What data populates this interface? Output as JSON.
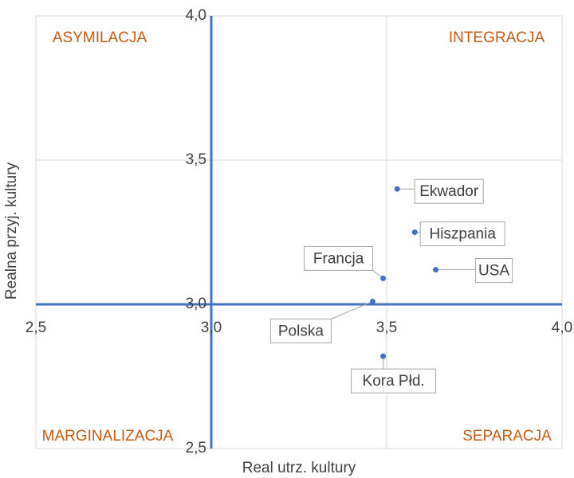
{
  "chart_data": {
    "type": "scatter",
    "xlabel": "Real utrz. kultury",
    "ylabel": "Realna przyj. kultury",
    "quadrant_labels": [
      "ASYMILACJA",
      "INTEGRACJA",
      "MARGINALIZACJA",
      "SEPARACJA"
    ],
    "labels": [
      "Ekwador",
      "Hiszpania",
      "USA",
      "Francja",
      "Polska",
      "Kora Płd."
    ],
    "x": [
      3.53,
      3.58,
      3.64,
      3.49,
      3.46,
      3.49
    ],
    "values": [
      3.4,
      3.25,
      3.12,
      3.09,
      3.01,
      2.82
    ],
    "color": "#4472c4",
    "xlim": [
      2.5,
      4.0
    ],
    "ylim": [
      2.5,
      4.0
    ],
    "xticks": [
      {
        "value": 2.5,
        "label": "2,5"
      },
      {
        "value": 3.0,
        "label": "3,0"
      },
      {
        "value": 3.5,
        "label": "3,5"
      },
      {
        "value": 4.0,
        "label": "4,0"
      }
    ],
    "yticks": [
      {
        "value": 2.5,
        "label": "2,5"
      },
      {
        "value": 3.0,
        "label": "3,0"
      },
      {
        "value": 3.5,
        "label": "3,5"
      },
      {
        "value": 4.0,
        "label": "4,0"
      }
    ],
    "axis_cross": [
      3.0,
      3.0
    ],
    "grid": true
  }
}
